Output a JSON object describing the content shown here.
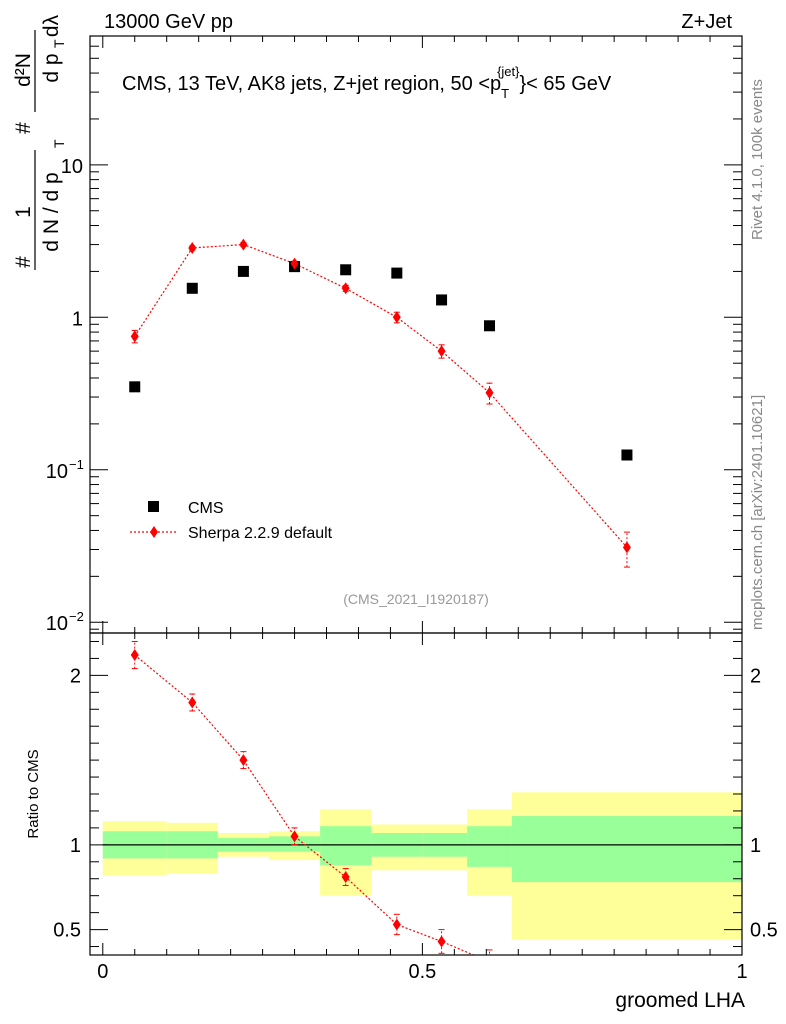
{
  "header": {
    "left": "13000 GeV pp",
    "right": "Z+Jet"
  },
  "side_labels": {
    "rivet": "Rivet 4.1.0,  100k events",
    "mcplots": "mcplots.cern.ch [arXiv:2401.10621]"
  },
  "analysis_ref": "(CMS_2021_I1920187)",
  "colors": {
    "cms": "#000000",
    "sherpa": "#ff0000",
    "band_inner": "#99ff99",
    "band_outer": "#ffff99"
  },
  "chart_data": [
    {
      "type": "scatter",
      "scale": "log",
      "title_parts": {
        "prefix": "CMS, 13 TeV, AK8 jets, Z+jet region, 50 <p",
        "sub": "T",
        "sup": "{jet}",
        "suffix": "}< 65 GeV"
      },
      "ylabel": "1/(dN/dpT) d²N/(dpT dλ)",
      "xlim": [
        -0.02,
        1.0
      ],
      "ylim": [
        0.0085,
        70
      ],
      "y_ticks": [
        {
          "value": 10,
          "label": "10"
        },
        {
          "value": 1,
          "label": "1"
        },
        {
          "value": 0.1,
          "label_base": "10",
          "label_exp": "−1"
        },
        {
          "value": 0.01,
          "label_base": "10",
          "label_exp": "−2"
        }
      ],
      "legend": {
        "position": "bottom-left",
        "entries": [
          "CMS",
          "Sherpa 2.2.9 default"
        ]
      },
      "series": [
        {
          "name": "CMS",
          "marker": "square",
          "x": [
            0.05,
            0.14,
            0.22,
            0.3,
            0.38,
            0.46,
            0.53,
            0.605,
            0.82
          ],
          "y": [
            0.35,
            1.55,
            2.0,
            2.15,
            2.05,
            1.95,
            1.3,
            0.88,
            0.125
          ]
        },
        {
          "name": "Sherpa 2.2.9 default",
          "marker": "diamond",
          "line": "dotted",
          "x": [
            0.05,
            0.14,
            0.22,
            0.3,
            0.38,
            0.46,
            0.53,
            0.605,
            0.82
          ],
          "y": [
            0.75,
            2.85,
            3.0,
            2.25,
            1.55,
            1.0,
            0.6,
            0.32,
            0.031
          ],
          "err_low": [
            0.07,
            0.09,
            0.09,
            0.08,
            0.07,
            0.08,
            0.06,
            0.05,
            0.008
          ],
          "err_high": [
            0.07,
            0.09,
            0.09,
            0.08,
            0.07,
            0.08,
            0.06,
            0.05,
            0.008
          ]
        }
      ]
    },
    {
      "type": "scatter",
      "scale": "linear",
      "ylabel": "Ratio to CMS",
      "xlabel": "groomed LHA",
      "xlim": [
        -0.02,
        1.0
      ],
      "ylim": [
        0.35,
        2.25
      ],
      "y_ticks": [
        0.5,
        1,
        2
      ],
      "x_ticks": [
        0,
        0.5,
        1
      ],
      "x_tick_labels": [
        "0",
        "0.5",
        "1"
      ],
      "y_tick_labels": [
        "0.5",
        "1",
        "2"
      ],
      "reference": 1,
      "bands": [
        {
          "x0": 0.0,
          "x1": 0.1,
          "inner": [
            0.92,
            1.08
          ],
          "outer": [
            0.82,
            1.14
          ]
        },
        {
          "x0": 0.1,
          "x1": 0.18,
          "inner": [
            0.92,
            1.08
          ],
          "outer": [
            0.83,
            1.13
          ]
        },
        {
          "x0": 0.18,
          "x1": 0.26,
          "inner": [
            0.96,
            1.04
          ],
          "outer": [
            0.93,
            1.07
          ]
        },
        {
          "x0": 0.26,
          "x1": 0.34,
          "inner": [
            0.96,
            1.05
          ],
          "outer": [
            0.91,
            1.08
          ]
        },
        {
          "x0": 0.34,
          "x1": 0.42,
          "inner": [
            0.88,
            1.11
          ],
          "outer": [
            0.7,
            1.21
          ]
        },
        {
          "x0": 0.42,
          "x1": 0.5,
          "inner": [
            0.93,
            1.07
          ],
          "outer": [
            0.85,
            1.12
          ]
        },
        {
          "x0": 0.5,
          "x1": 0.57,
          "inner": [
            0.93,
            1.07
          ],
          "outer": [
            0.85,
            1.12
          ]
        },
        {
          "x0": 0.57,
          "x1": 0.64,
          "inner": [
            0.87,
            1.11
          ],
          "outer": [
            0.7,
            1.21
          ]
        },
        {
          "x0": 0.64,
          "x1": 1.0,
          "inner": [
            0.78,
            1.17
          ],
          "outer": [
            0.44,
            1.31
          ]
        }
      ],
      "series": [
        {
          "name": "Sherpa 2.2.9 default / CMS",
          "marker": "diamond",
          "line": "dotted",
          "x": [
            0.05,
            0.14,
            0.22,
            0.3,
            0.38,
            0.46,
            0.53,
            0.605
          ],
          "y": [
            2.12,
            1.84,
            1.5,
            1.05,
            0.81,
            0.53,
            0.43,
            0.31
          ],
          "err_low": [
            0.08,
            0.05,
            0.05,
            0.05,
            0.05,
            0.06,
            0.07,
            0.07
          ],
          "err_high": [
            0.08,
            0.05,
            0.05,
            0.05,
            0.05,
            0.06,
            0.07,
            0.07
          ]
        }
      ]
    }
  ]
}
